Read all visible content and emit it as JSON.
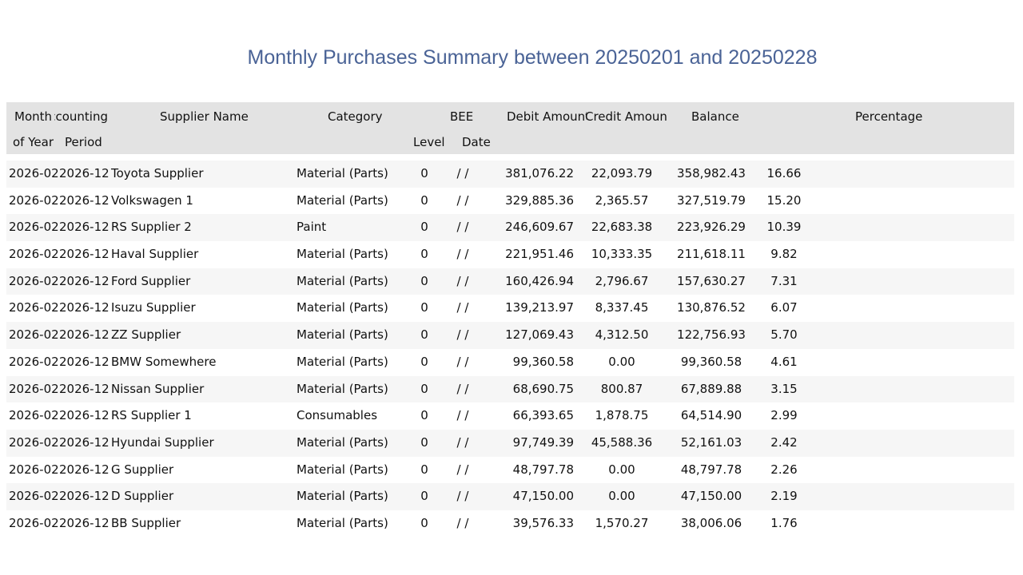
{
  "report": {
    "title": "Monthly Purchases Summary between 20250201 and 20250228"
  },
  "columns": {
    "month_l1": "Month",
    "month_l2": "of Year",
    "accounting_l1": "Accounting",
    "accounting_l2": "Period",
    "supplier": "Supplier Name",
    "category": "Category",
    "bee_l1": "BEE",
    "bee_level": "Level",
    "bee_date": "Date",
    "debit": "Debit Amount",
    "credit": "Credit Amount",
    "balance": "Balance",
    "percentage": "Percentage"
  },
  "rows": [
    {
      "month": "2026-02",
      "period": "2026-12",
      "supplier": "Toyota Supplier",
      "category": "Material (Parts)",
      "level": "0",
      "date": "/ /",
      "debit": "381,076.22",
      "credit": "22,093.79",
      "balance": "358,982.43",
      "percentage": "16.66"
    },
    {
      "month": "2026-02",
      "period": "2026-12",
      "supplier": "Volkswagen 1",
      "category": "Material (Parts)",
      "level": "0",
      "date": "/ /",
      "debit": "329,885.36",
      "credit": "2,365.57",
      "balance": "327,519.79",
      "percentage": "15.20"
    },
    {
      "month": "2026-02",
      "period": "2026-12",
      "supplier": "RS Supplier 2",
      "category": "Paint",
      "level": "0",
      "date": "/ /",
      "debit": "246,609.67",
      "credit": "22,683.38",
      "balance": "223,926.29",
      "percentage": "10.39"
    },
    {
      "month": "2026-02",
      "period": "2026-12",
      "supplier": "Haval Supplier",
      "category": "Material (Parts)",
      "level": "0",
      "date": "/ /",
      "debit": "221,951.46",
      "credit": "10,333.35",
      "balance": "211,618.11",
      "percentage": "9.82"
    },
    {
      "month": "2026-02",
      "period": "2026-12",
      "supplier": "Ford Supplier",
      "category": "Material (Parts)",
      "level": "0",
      "date": "/ /",
      "debit": "160,426.94",
      "credit": "2,796.67",
      "balance": "157,630.27",
      "percentage": "7.31"
    },
    {
      "month": "2026-02",
      "period": "2026-12",
      "supplier": "Isuzu Supplier",
      "category": "Material (Parts)",
      "level": "0",
      "date": "/ /",
      "debit": "139,213.97",
      "credit": "8,337.45",
      "balance": "130,876.52",
      "percentage": "6.07"
    },
    {
      "month": "2026-02",
      "period": "2026-12",
      "supplier": "ZZ Supplier",
      "category": "Material (Parts)",
      "level": "0",
      "date": "/ /",
      "debit": "127,069.43",
      "credit": "4,312.50",
      "balance": "122,756.93",
      "percentage": "5.70"
    },
    {
      "month": "2026-02",
      "period": "2026-12",
      "supplier": "BMW Somewhere",
      "category": "Material (Parts)",
      "level": "0",
      "date": "/ /",
      "debit": "99,360.58",
      "credit": "0.00",
      "balance": "99,360.58",
      "percentage": "4.61"
    },
    {
      "month": "2026-02",
      "period": "2026-12",
      "supplier": "Nissan Supplier",
      "category": "Material (Parts)",
      "level": "0",
      "date": "/ /",
      "debit": "68,690.75",
      "credit": "800.87",
      "balance": "67,889.88",
      "percentage": "3.15"
    },
    {
      "month": "2026-02",
      "period": "2026-12",
      "supplier": "RS Supplier 1",
      "category": "Consumables",
      "level": "0",
      "date": "/ /",
      "debit": "66,393.65",
      "credit": "1,878.75",
      "balance": "64,514.90",
      "percentage": "2.99"
    },
    {
      "month": "2026-02",
      "period": "2026-12",
      "supplier": "Hyundai Supplier",
      "category": "Material (Parts)",
      "level": "0",
      "date": "/ /",
      "debit": "97,749.39",
      "credit": "45,588.36",
      "balance": "52,161.03",
      "percentage": "2.42"
    },
    {
      "month": "2026-02",
      "period": "2026-12",
      "supplier": "G Supplier",
      "category": "Material (Parts)",
      "level": "0",
      "date": "/ /",
      "debit": "48,797.78",
      "credit": "0.00",
      "balance": "48,797.78",
      "percentage": "2.26"
    },
    {
      "month": "2026-02",
      "period": "2026-12",
      "supplier": "D Supplier",
      "category": "Material (Parts)",
      "level": "0",
      "date": "/ /",
      "debit": "47,150.00",
      "credit": "0.00",
      "balance": "47,150.00",
      "percentage": "2.19"
    },
    {
      "month": "2026-02",
      "period": "2026-12",
      "supplier": "BB Supplier",
      "category": "Material (Parts)",
      "level": "0",
      "date": "/ /",
      "debit": "39,576.33",
      "credit": "1,570.27",
      "balance": "38,006.06",
      "percentage": "1.76"
    }
  ]
}
